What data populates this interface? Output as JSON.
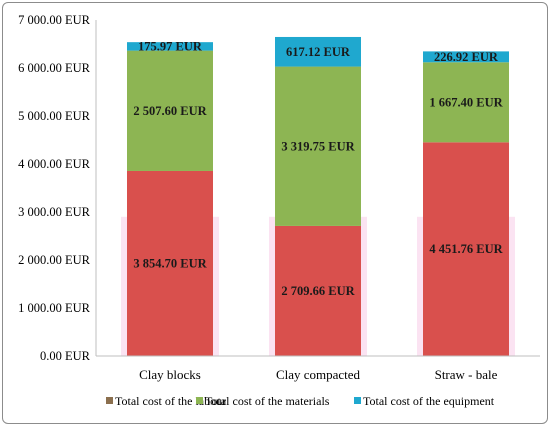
{
  "chart_data": {
    "type": "bar",
    "stacked": true,
    "categories": [
      "Clay blocks",
      "Clay compacted",
      "Straw - bale"
    ],
    "series": [
      {
        "name": "Total cost of the labour",
        "values": [
          3854.7,
          2709.66,
          4451.76
        ],
        "labels": [
          "3 854.70 EUR",
          "2 709.66 EUR",
          "4 451.76 EUR"
        ],
        "color": "#d9504d",
        "legend_color": "#8b6f4e"
      },
      {
        "name": "Total cost of the materials",
        "values": [
          2507.6,
          3319.75,
          1667.4
        ],
        "labels": [
          "2 507.60 EUR",
          "3 319.75 EUR",
          "1 667.40 EUR"
        ],
        "color": "#8db553",
        "legend_color": "#8db553"
      },
      {
        "name": "Total cost of the equipment",
        "values": [
          175.97,
          617.12,
          226.92
        ],
        "labels": [
          "175.97 EUR",
          "617.12 EUR",
          "226.92 EUR"
        ],
        "color": "#1fa8cf",
        "legend_color": "#1fa8cf"
      }
    ],
    "ylim": [
      0,
      7000
    ],
    "yticks": [
      0,
      1000,
      2000,
      3000,
      4000,
      5000,
      6000,
      7000
    ],
    "ytick_labels": [
      "0.00 EUR",
      "1 000.00 EUR",
      "2 000.00 EUR",
      "3 000.00 EUR",
      "4 000.00 EUR",
      "5 000.00 EUR",
      "6 000.00 EUR",
      "7 000.00 EUR"
    ],
    "grid": false,
    "legend": "bottom",
    "title": "",
    "xlabel": "",
    "ylabel": ""
  }
}
